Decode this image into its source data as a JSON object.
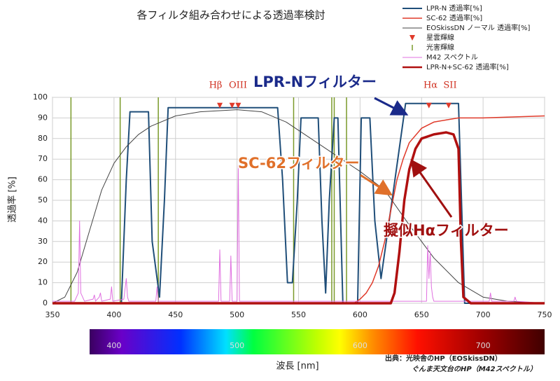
{
  "chart_data": {
    "type": "line",
    "title": "各フィルタ組み合わせによる透過率検討",
    "y_label": "透過率 [%]",
    "x_label": "波長 [nm]",
    "xlim": [
      350,
      750
    ],
    "xticks": [
      350,
      400,
      450,
      500,
      550,
      600,
      650,
      700,
      750
    ],
    "ylim": [
      0,
      100
    ],
    "yticks": [
      0,
      10,
      20,
      30,
      40,
      50,
      60,
      70,
      80,
      90,
      100
    ],
    "grid": true,
    "series": [
      {
        "name": "LPR-N 透過率[%]",
        "color": "#1f4e79",
        "style": "line",
        "line_width": 2,
        "x": [
          350,
          406,
          410,
          413,
          428,
          431,
          437,
          441,
          444,
          533,
          537,
          541,
          545,
          549,
          552,
          566,
          569,
          572,
          575,
          579,
          582,
          586,
          598,
          601,
          608,
          612,
          617,
          626,
          637,
          680,
          685,
          750
        ],
        "values": [
          0,
          0,
          60,
          93,
          93,
          30,
          3,
          50,
          95,
          95,
          60,
          10,
          10,
          50,
          90,
          90,
          40,
          5,
          50,
          90,
          90,
          0,
          0,
          90,
          90,
          40,
          12,
          50,
          97,
          97,
          0,
          0
        ]
      },
      {
        "name": "SC-62 透過率[%]",
        "color": "#e03a2a",
        "style": "line",
        "line_width": 1.5,
        "x": [
          350,
          595,
          600,
          605,
          610,
          615,
          620,
          625,
          630,
          635,
          640,
          650,
          660,
          670,
          680,
          700,
          750
        ],
        "values": [
          0,
          0,
          2,
          5,
          10,
          18,
          30,
          45,
          60,
          70,
          78,
          85,
          88,
          89,
          90,
          90,
          91
        ]
      },
      {
        "name": "EOSkissDN ノーマル 透過率[%]",
        "color": "#444444",
        "style": "line",
        "line_width": 1,
        "x": [
          350,
          360,
          370,
          380,
          390,
          400,
          410,
          420,
          430,
          450,
          470,
          500,
          520,
          540,
          560,
          580,
          600,
          620,
          640,
          660,
          680,
          700,
          720,
          750
        ],
        "values": [
          0,
          3,
          15,
          35,
          55,
          68,
          76,
          82,
          86,
          91,
          93,
          94,
          93,
          88,
          80,
          72,
          64,
          55,
          38,
          22,
          10,
          3,
          1,
          0
        ]
      },
      {
        "name": "星雲輝線",
        "color": "#e03a2a",
        "style": "triangle",
        "x": [
          486,
          496,
          501,
          656,
          672
        ],
        "values": [
          96,
          96,
          96,
          96,
          96
        ]
      },
      {
        "name": "光害輝線",
        "color": "#7a9a2a",
        "style": "vline",
        "x": [
          365,
          405,
          436,
          546,
          577,
          579,
          589
        ],
        "values": [
          100,
          100,
          100,
          100,
          100,
          100,
          100
        ]
      },
      {
        "name": "M42 スペクトル",
        "color": "#e070e0",
        "style": "line",
        "line_width": 1,
        "x": [
          350,
          368,
          371,
          372,
          373,
          376,
          383,
          384,
          385,
          388,
          389,
          390,
          397,
          398,
          399,
          408,
          410,
          411,
          412,
          420,
          434,
          435,
          436,
          470,
          485,
          486,
          487,
          494,
          495,
          496,
          498,
          500,
          501,
          502,
          504,
          540,
          560,
          580,
          600,
          640,
          654,
          655,
          656,
          657,
          658,
          659,
          660,
          700,
          705,
          706,
          707,
          725,
          726,
          727,
          750
        ],
        "values": [
          1,
          1,
          5,
          40,
          5,
          1,
          2,
          4,
          1,
          3,
          5,
          1,
          2,
          8,
          1,
          2,
          12,
          3,
          1,
          1,
          1,
          8,
          1,
          1,
          1,
          26,
          1,
          1,
          23,
          1,
          1,
          1,
          67,
          1,
          1,
          1,
          1,
          1,
          1,
          1,
          1,
          28,
          12,
          25,
          8,
          3,
          1,
          1,
          1,
          5,
          1,
          1,
          3,
          1,
          0
        ]
      },
      {
        "name": "LPR-N+SC-62 透過率[%]",
        "color": "#b01010",
        "style": "line",
        "line_width": 3.5,
        "x": [
          350,
          625,
          628,
          632,
          636,
          640,
          645,
          650,
          660,
          670,
          676,
          680,
          682,
          684,
          690,
          750
        ],
        "values": [
          0,
          0,
          5,
          25,
          50,
          65,
          75,
          80,
          82,
          83,
          82,
          75,
          30,
          3,
          0,
          0
        ]
      }
    ],
    "line_labels": [
      "Hβ",
      "OIII",
      "Hα",
      "SII"
    ],
    "annotations": [
      "LPR-Nフィルター",
      "SC-62フィルター",
      "擬似Hαフィルター"
    ],
    "spectrum_labels": [
      400,
      500,
      600,
      700
    ],
    "source": [
      "出典：光映舎のHP（EOSkissDN）",
      "ぐんま天文台のHP（M42スペクトル）"
    ]
  }
}
